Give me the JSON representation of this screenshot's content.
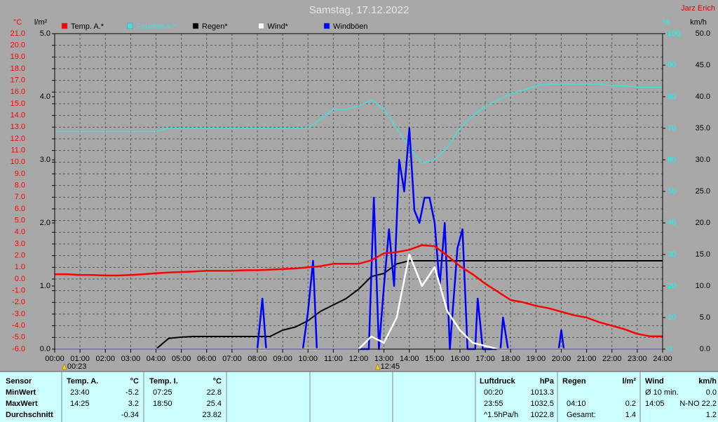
{
  "chart_data": {
    "type": "line",
    "title": "Samstag, 17.12.2022",
    "author": "Jarz Erich",
    "x": [
      0,
      0.5,
      1,
      1.5,
      2,
      2.5,
      3,
      3.5,
      4,
      4.5,
      5,
      5.5,
      6,
      6.5,
      7,
      7.5,
      8,
      8.5,
      9,
      9.5,
      10,
      10.5,
      11,
      11.5,
      12,
      12.5,
      13,
      13.5,
      14,
      14.5,
      15,
      15.5,
      16,
      16.5,
      17,
      17.5,
      18,
      18.5,
      19,
      19.5,
      20,
      20.5,
      21,
      21.5,
      22,
      22.5,
      23,
      23.5,
      24
    ],
    "xlim": [
      0,
      24
    ],
    "xticks": [
      {
        "value": 0,
        "label": "00:00"
      },
      {
        "value": 1,
        "label": "01:00"
      },
      {
        "value": 2,
        "label": "02:00"
      },
      {
        "value": 3,
        "label": "03:00"
      },
      {
        "value": 4,
        "label": "04:00"
      },
      {
        "value": 5,
        "label": "05:00"
      },
      {
        "value": 6,
        "label": "06:00"
      },
      {
        "value": 7,
        "label": "07:00"
      },
      {
        "value": 8,
        "label": "08:00"
      },
      {
        "value": 9,
        "label": "09:00"
      },
      {
        "value": 10,
        "label": "10:00"
      },
      {
        "value": 11,
        "label": "11:00"
      },
      {
        "value": 12,
        "label": "12:00"
      },
      {
        "value": 13,
        "label": "13:00"
      },
      {
        "value": 14,
        "label": "14:00"
      },
      {
        "value": 15,
        "label": "15:00"
      },
      {
        "value": 16,
        "label": "16:00"
      },
      {
        "value": 17,
        "label": "17:00"
      },
      {
        "value": 18,
        "label": "18:00"
      },
      {
        "value": 19,
        "label": "19:00"
      },
      {
        "value": 20,
        "label": "20:00"
      },
      {
        "value": 21,
        "label": "21:00"
      },
      {
        "value": 22,
        "label": "22:00"
      },
      {
        "value": 23,
        "label": "23:00"
      },
      {
        "value": 24,
        "label": "24:00"
      }
    ],
    "ylabel": "°C",
    "ylim": [
      -6,
      21
    ],
    "yticks": [
      {
        "value": -6,
        "label": "-6.0"
      },
      {
        "value": -5,
        "label": "-5.0"
      },
      {
        "value": -4,
        "label": "-4.0"
      },
      {
        "value": -3,
        "label": "-3.0"
      },
      {
        "value": -2,
        "label": "-2.0"
      },
      {
        "value": -1,
        "label": "-1.0"
      },
      {
        "value": 0,
        "label": "0.0"
      },
      {
        "value": 1,
        "label": "1.0"
      },
      {
        "value": 2,
        "label": "2.0"
      },
      {
        "value": 3,
        "label": "3.0"
      },
      {
        "value": 4,
        "label": "4.0"
      },
      {
        "value": 5,
        "label": "5.0"
      },
      {
        "value": 6,
        "label": "6.0"
      },
      {
        "value": 7,
        "label": "7.0"
      },
      {
        "value": 8,
        "label": "8.0"
      },
      {
        "value": 9,
        "label": "9.0"
      },
      {
        "value": 10,
        "label": "10.0"
      },
      {
        "value": 11,
        "label": "11.0"
      },
      {
        "value": 12,
        "label": "12.0"
      },
      {
        "value": 13,
        "label": "13.0"
      },
      {
        "value": 14,
        "label": "14.0"
      },
      {
        "value": 15,
        "label": "15.0"
      },
      {
        "value": 16,
        "label": "16.0"
      },
      {
        "value": 17,
        "label": "17.0"
      },
      {
        "value": 18,
        "label": "18.0"
      },
      {
        "value": 19,
        "label": "19.0"
      },
      {
        "value": 20,
        "label": "20.0"
      },
      {
        "value": 21,
        "label": "21.0"
      }
    ],
    "y2label": "l/m²",
    "y2lim": [
      0,
      5
    ],
    "y2ticks": [
      {
        "value": 0,
        "label": "0.0"
      },
      {
        "value": 1,
        "label": "1.0"
      },
      {
        "value": 2,
        "label": "2.0"
      },
      {
        "value": 3,
        "label": "3.0"
      },
      {
        "value": 4,
        "label": "4.0"
      },
      {
        "value": 5,
        "label": "5.0"
      }
    ],
    "y3label": "%",
    "y3lim": [
      0,
      100
    ],
    "y3ticks": [
      0,
      10,
      20,
      30,
      40,
      50,
      60,
      70,
      80,
      90,
      100
    ],
    "y4label": "km/h",
    "y4lim": [
      0,
      50
    ],
    "y4ticks": [
      {
        "value": 0,
        "label": "0.0"
      },
      {
        "value": 5,
        "label": "5.0"
      },
      {
        "value": 10,
        "label": "10.0"
      },
      {
        "value": 15,
        "label": "15.0"
      },
      {
        "value": 20,
        "label": "20.0"
      },
      {
        "value": 25,
        "label": "25.0"
      },
      {
        "value": 30,
        "label": "30.0"
      },
      {
        "value": 35,
        "label": "35.0"
      },
      {
        "value": 40,
        "label": "40.0"
      },
      {
        "value": 45,
        "label": "45.0"
      },
      {
        "value": 50,
        "label": "50.0"
      }
    ],
    "axis_colors": {
      "y": "#ff0000",
      "y2": "#000000",
      "y3": "#00ffff",
      "y4": "#000000"
    },
    "grid": true,
    "series": [
      {
        "name": "Temp. A.*",
        "color": "#ff0000",
        "axis": "y",
        "values": [
          0.4,
          0.4,
          0.35,
          0.35,
          0.3,
          0.3,
          0.35,
          0.4,
          0.5,
          0.55,
          0.6,
          0.65,
          0.7,
          0.7,
          0.7,
          0.75,
          0.75,
          0.8,
          0.85,
          0.9,
          1.0,
          1.1,
          1.3,
          1.3,
          1.3,
          1.6,
          2.2,
          2.3,
          2.5,
          2.9,
          2.8,
          2.0,
          1.1,
          0.4,
          -0.4,
          -1.1,
          -1.8,
          -2.0,
          -2.3,
          -2.5,
          -2.8,
          -3.1,
          -3.3,
          -3.7,
          -4.0,
          -4.3,
          -4.7,
          -4.9,
          -4.9
        ]
      },
      {
        "name": "Feuchte A.*",
        "color": "#40e0e0",
        "axis": "y3",
        "values": [
          69,
          69,
          69,
          69,
          69,
          69,
          69,
          69,
          69,
          70,
          70,
          70,
          70,
          70,
          70,
          70,
          70,
          70,
          70,
          70,
          70,
          73,
          76,
          76,
          77,
          79,
          76,
          70,
          64,
          59,
          60,
          64,
          70,
          74,
          77,
          79,
          81,
          82,
          83.5,
          84,
          84,
          84,
          84,
          84,
          83.5,
          83.5,
          83,
          83,
          83
        ]
      },
      {
        "name": "Regen*",
        "color": "#000000",
        "axis": "y2",
        "values": [
          0,
          0,
          0,
          0,
          0,
          0,
          0,
          0,
          0,
          0.17,
          0.19,
          0.2,
          0.2,
          0.2,
          0.2,
          0.2,
          0.2,
          0.2,
          0.3,
          0.35,
          0.45,
          0.6,
          0.7,
          0.8,
          0.95,
          1.15,
          1.2,
          1.35,
          1.4,
          1.4,
          1.4,
          1.4,
          1.4,
          1.4,
          1.4,
          1.4,
          1.4,
          1.4,
          1.4,
          1.4,
          1.4,
          1.4,
          1.4,
          1.4,
          1.4,
          1.4,
          1.4,
          1.4,
          1.4
        ]
      },
      {
        "name": "Wind*",
        "color": "#ffffff",
        "axis": "y4",
        "values": [
          0,
          0,
          0,
          0,
          0,
          0,
          0,
          0,
          0,
          0,
          0,
          0,
          0,
          0,
          0,
          0,
          0,
          0,
          0,
          0,
          0,
          0,
          0,
          0,
          0,
          2,
          1,
          5,
          15,
          10,
          13,
          6,
          3,
          1,
          0.5,
          0,
          0,
          0,
          0,
          0,
          0,
          0,
          0,
          0,
          0,
          0,
          0,
          0,
          0
        ]
      },
      {
        "name": "Windböen",
        "color": "#0000ff",
        "axis": "y4",
        "x": [
          0,
          8.0,
          8.2,
          8.35,
          9.8,
          10.0,
          10.2,
          10.35,
          11.0,
          12.4,
          12.6,
          12.8,
          13.0,
          13.2,
          13.4,
          13.6,
          13.8,
          14.0,
          14.2,
          14.4,
          14.6,
          14.8,
          15.0,
          15.2,
          15.4,
          15.6,
          15.9,
          16.1,
          16.3,
          16.6,
          16.7,
          16.9,
          17.6,
          17.7,
          17.9,
          19.9,
          20.0,
          20.1,
          24
        ],
        "values": [
          0,
          0,
          8,
          0,
          0,
          6,
          14,
          0,
          0,
          0,
          24,
          0,
          10,
          19,
          10,
          30,
          25,
          35,
          22,
          20,
          24,
          24,
          20,
          10,
          20,
          0,
          16,
          19,
          0,
          0,
          8,
          0,
          0,
          5,
          0,
          0,
          3,
          0,
          0
        ]
      }
    ],
    "annotations": [
      {
        "x": 0.3833,
        "label": "00:23"
      },
      {
        "x": 12.75,
        "label": "12:45"
      }
    ]
  },
  "summary": {
    "row_labels": [
      "Sensor",
      "MinWert",
      "MaxWert",
      "Durchschnitt"
    ],
    "blocks": [
      {
        "title": "Temp. A.",
        "unit": "°C",
        "rows": [
          {
            "time": "23:40",
            "value": "-5.2"
          },
          {
            "time": "14:25",
            "value": "3.2"
          },
          {
            "value": "-0.34"
          }
        ]
      },
      {
        "title": "Temp. I.",
        "unit": "°C",
        "rows": [
          {
            "time": "07:25",
            "value": "22.8"
          },
          {
            "time": "18:50",
            "value": "25.4"
          },
          {
            "value": "23.82"
          }
        ]
      },
      {
        "title": "Luftdruck",
        "unit": "hPa",
        "rows": [
          {
            "time": "00:20",
            "value": "1013.3"
          },
          {
            "time": "23:55",
            "value": "1032.5"
          },
          {
            "time": "^1.5hPa/h",
            "value": "1022.8"
          }
        ]
      },
      {
        "title": "Regen",
        "unit": "l/m²",
        "rows": [
          null,
          {
            "time": "04:10",
            "value": "0.2"
          },
          {
            "time": "Gesamt:",
            "value": "1.4"
          }
        ]
      },
      {
        "title": "Wind",
        "unit": "km/h",
        "rows": [
          {
            "time": "Ø 10 min.",
            "value": "0.0"
          },
          {
            "time": "14:05",
            "value": "N-NO 22.2"
          },
          {
            "value": "1.2"
          }
        ]
      }
    ]
  }
}
